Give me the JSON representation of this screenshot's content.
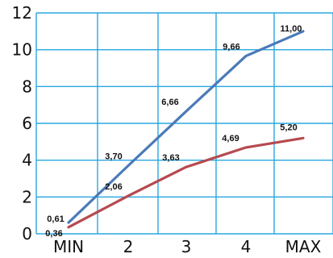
{
  "chart_data": {
    "type": "line",
    "categories": [
      "MIN",
      "2",
      "3",
      "4",
      "MAX"
    ],
    "ylim": [
      0,
      12
    ],
    "yticks": [
      0,
      2,
      4,
      6,
      8,
      10,
      12
    ],
    "grid": true,
    "colors": {
      "grid": "#29a7e1",
      "background": "#ffffff"
    },
    "series": [
      {
        "color": "#4a7ab8",
        "values": [
          0.61,
          3.7,
          6.66,
          9.66,
          11.0
        ],
        "labels": [
          "0,61",
          "3,70",
          "6,66",
          "9,66",
          "11,00"
        ]
      },
      {
        "color": "#b64a4f",
        "values": [
          0.36,
          2.06,
          3.63,
          4.69,
          5.2
        ],
        "labels": [
          "0,36",
          "2,06",
          "3,63",
          "4,69",
          "5,20"
        ]
      }
    ]
  }
}
